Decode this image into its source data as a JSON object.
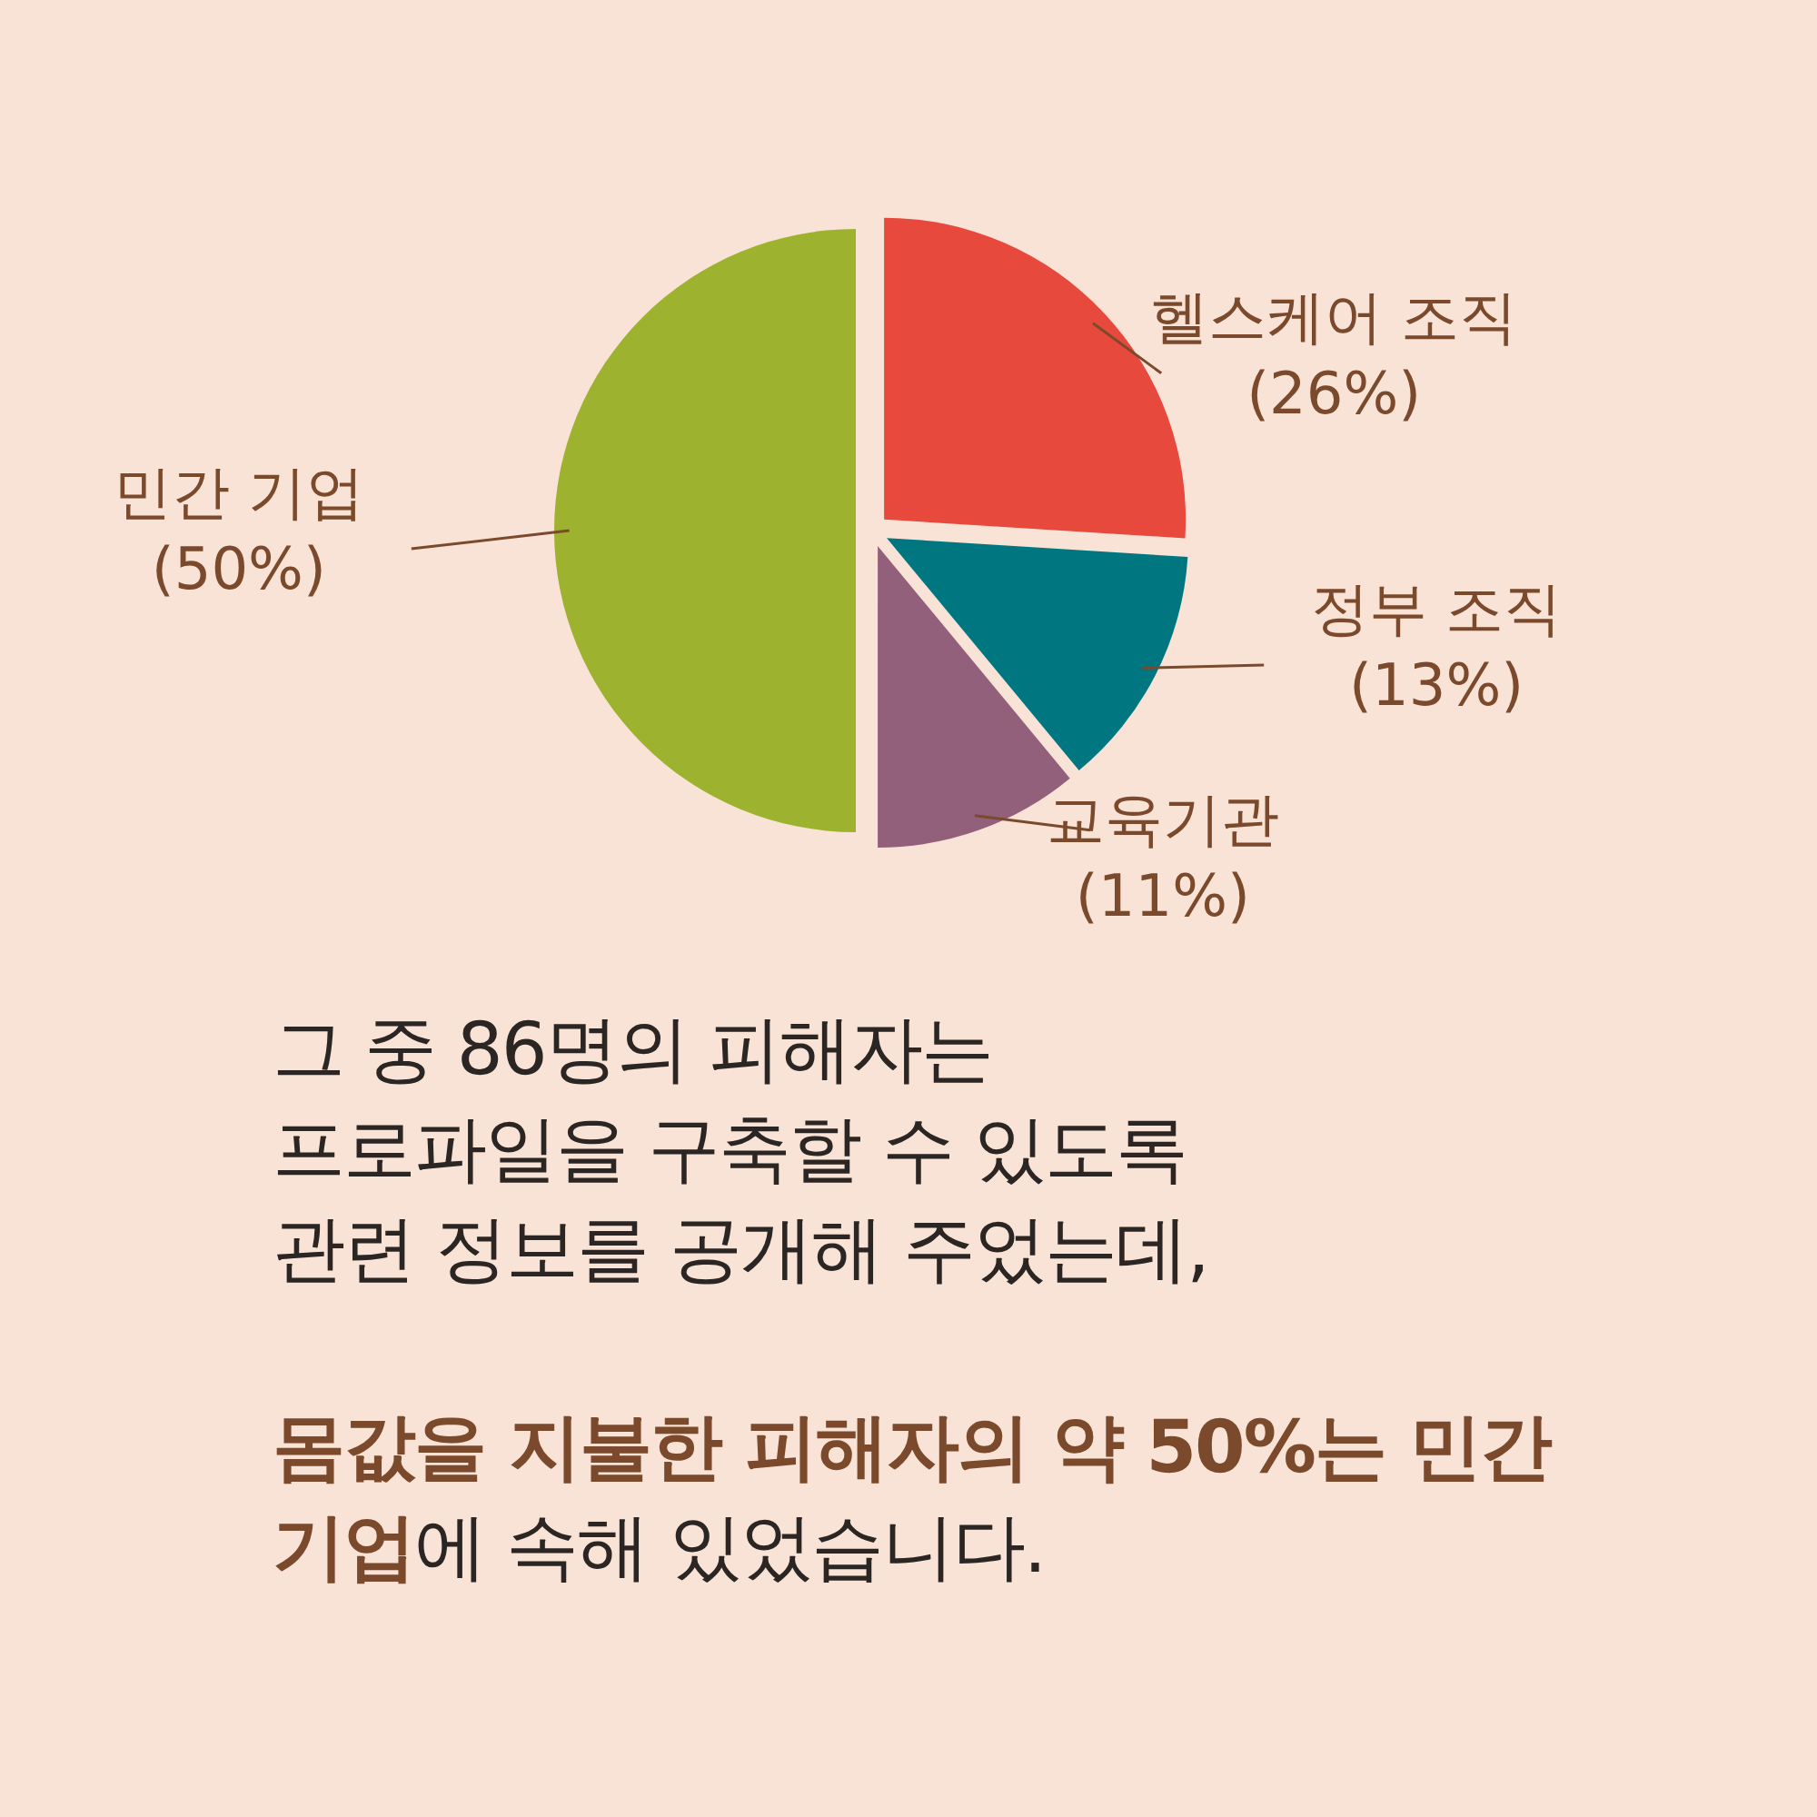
{
  "chart_data": {
    "type": "pie",
    "categories": [
      "헬스케어 조직",
      "정부 조직",
      "교육기관",
      "민간 기업"
    ],
    "values": [
      26,
      13,
      11,
      50
    ],
    "colors": [
      "#e8493d",
      "#007680",
      "#93607b",
      "#9db22e"
    ],
    "value_labels": [
      "(26%)",
      "(13%)",
      "(11%)",
      "(50%)"
    ],
    "annotations": [
      "그 중 86명의 피해자는",
      "프로파일을 구축할 수 있도록",
      "관련 정보를 공개해 주었는데,",
      "**몸값을 지불한 피해자의 약 50%는 민간 기업**에 속해 있었습니다."
    ]
  }
}
